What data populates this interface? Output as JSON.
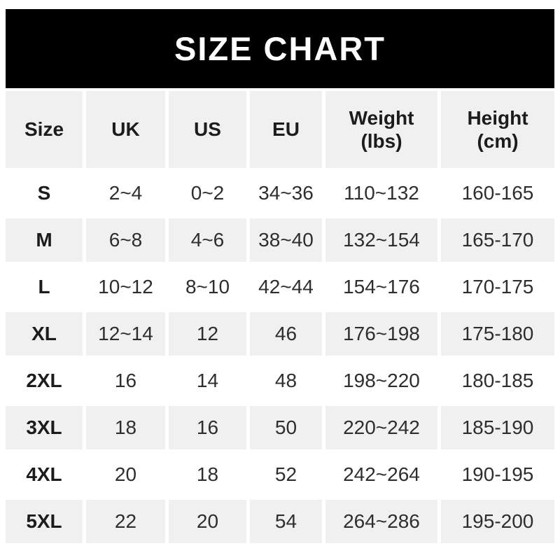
{
  "banner": {
    "title": "SIZE CHART"
  },
  "colors": {
    "banner_bg": "#000000",
    "banner_text": "#ffffff",
    "stripe_row_bg": "#f0f0f0",
    "plain_row_bg": "#ffffff",
    "text": "#2e2e2e",
    "bold_text": "#1c1c1c"
  },
  "chart_data": {
    "type": "table",
    "title": "SIZE CHART",
    "columns": [
      [
        "Size"
      ],
      [
        "UK"
      ],
      [
        "US"
      ],
      [
        "EU"
      ],
      [
        "Weight",
        "(lbs)"
      ],
      [
        "Height",
        "(cm)"
      ]
    ],
    "rows": [
      [
        "S",
        "2~4",
        "0~2",
        "34~36",
        "110~132",
        "160-165"
      ],
      [
        "M",
        "6~8",
        "4~6",
        "38~40",
        "132~154",
        "165-170"
      ],
      [
        "L",
        "10~12",
        "8~10",
        "42~44",
        "154~176",
        "170-175"
      ],
      [
        "XL",
        "12~14",
        "12",
        "46",
        "176~198",
        "175-180"
      ],
      [
        "2XL",
        "16",
        "14",
        "48",
        "198~220",
        "180-185"
      ],
      [
        "3XL",
        "18",
        "16",
        "50",
        "220~242",
        "185-190"
      ],
      [
        "4XL",
        "20",
        "18",
        "52",
        "242~264",
        "190-195"
      ],
      [
        "5XL",
        "22",
        "20",
        "54",
        "264~286",
        "195-200"
      ]
    ],
    "stripe_rows": [
      "header",
      "M",
      "XL",
      "3XL",
      "5XL"
    ]
  }
}
